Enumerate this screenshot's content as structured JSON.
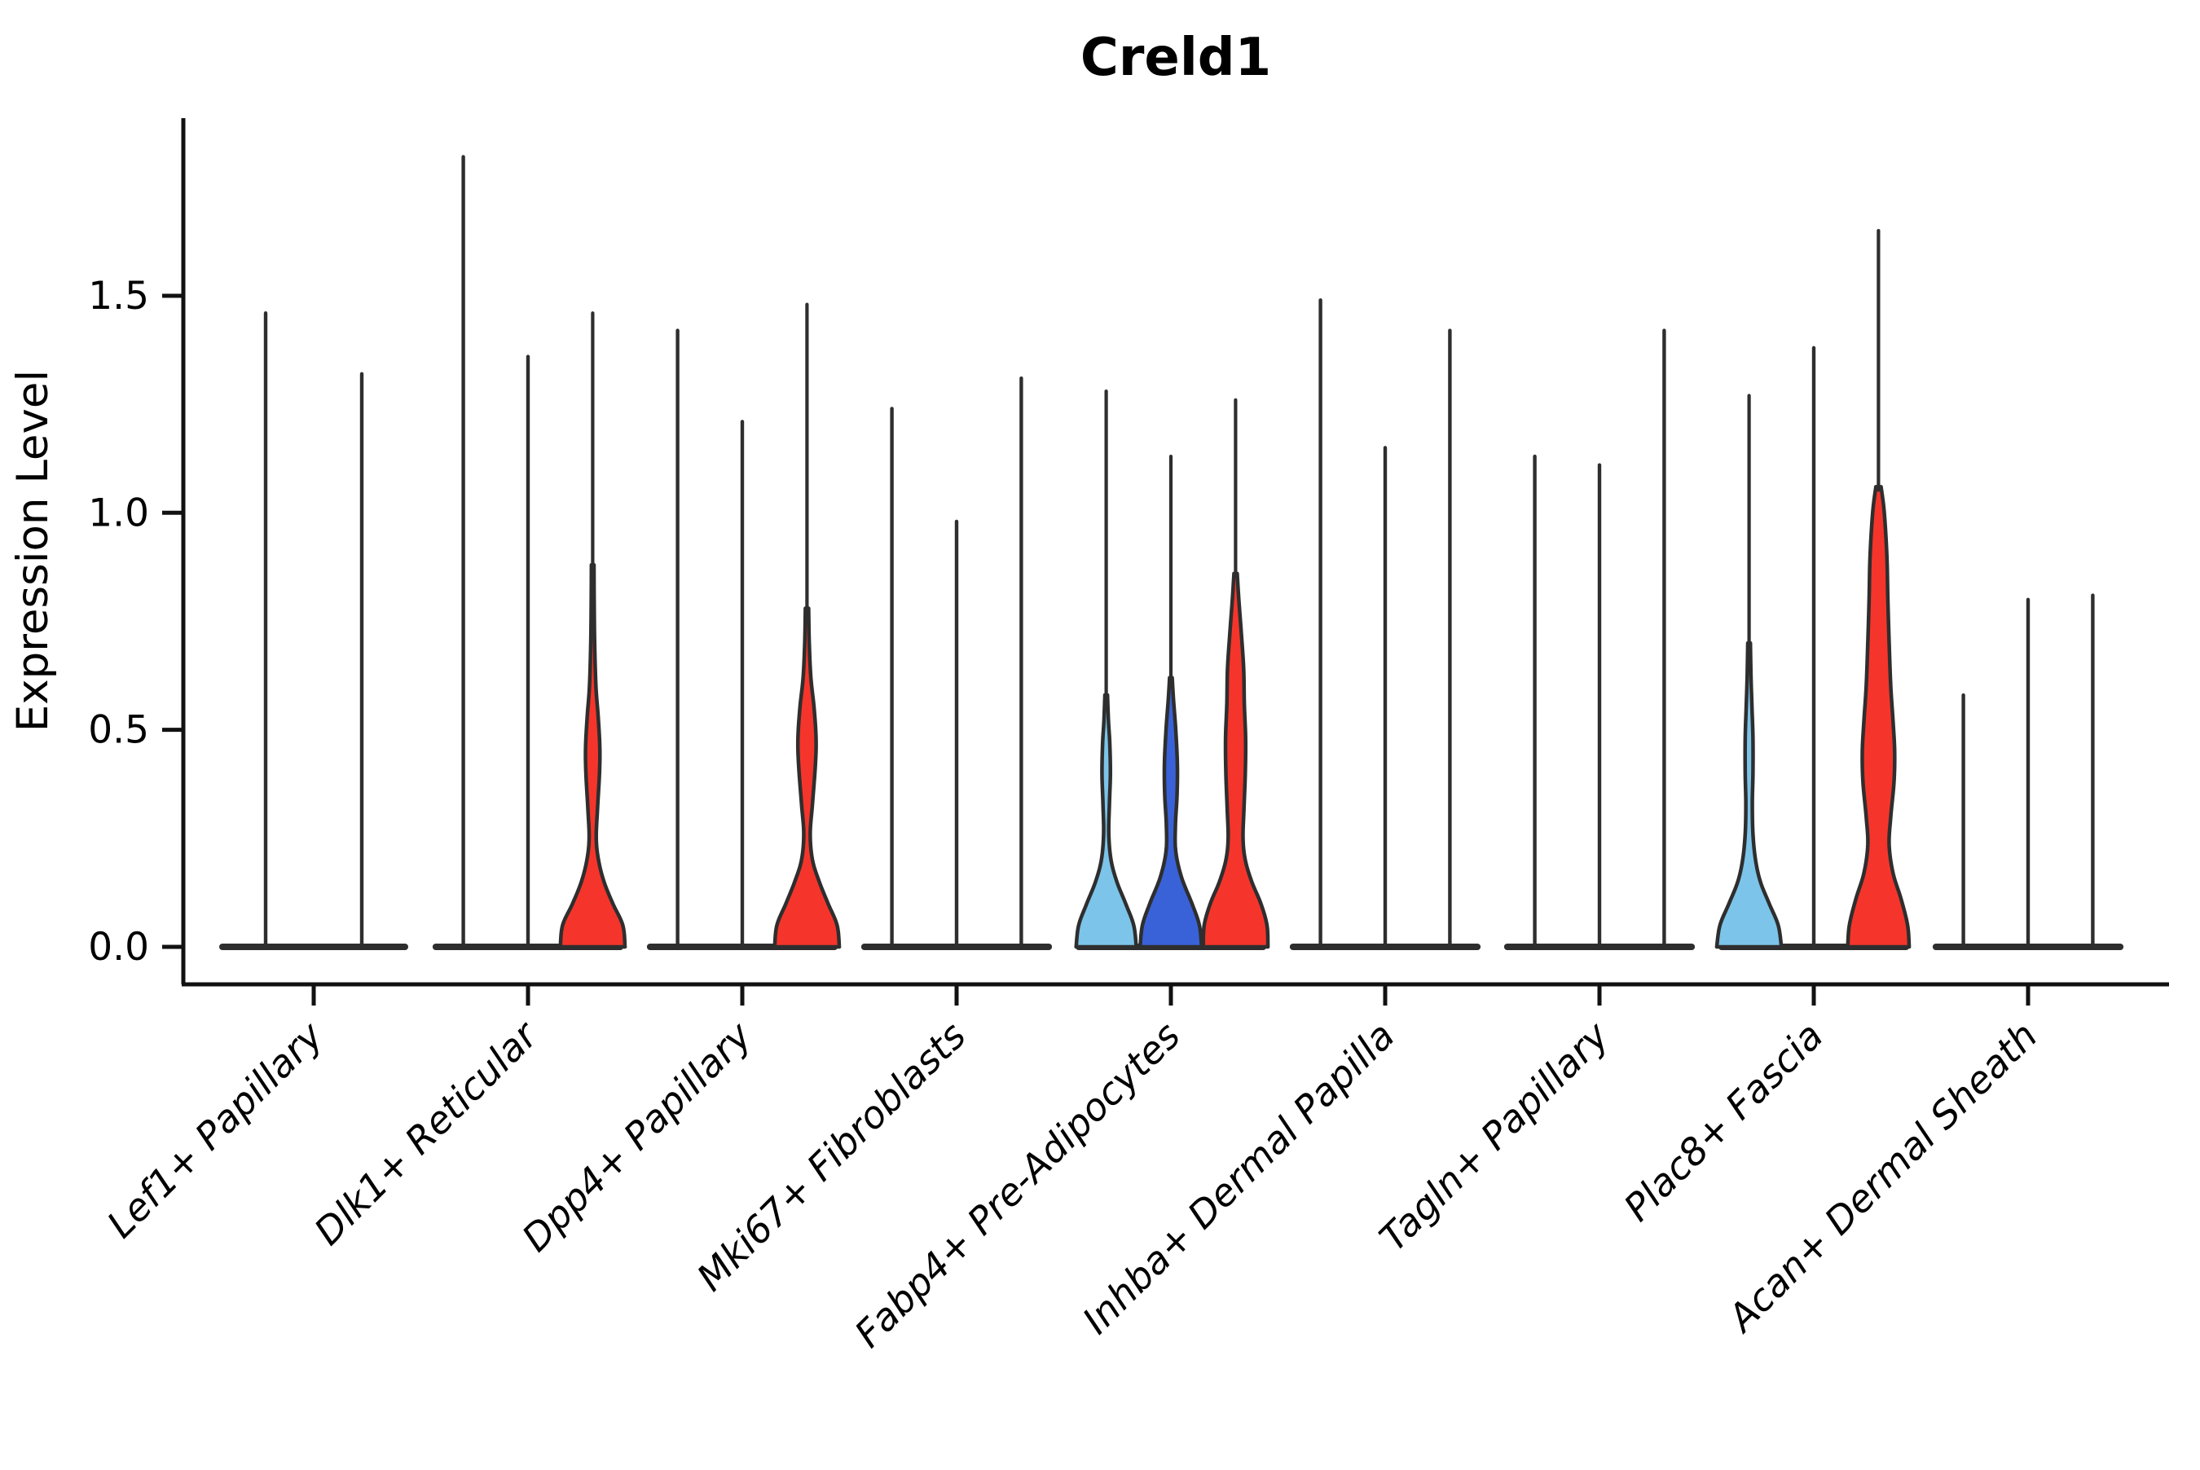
{
  "chart_data": {
    "type": "violin",
    "title": "Creld1",
    "xlabel": "",
    "ylabel": "Expression Level",
    "ylim": [
      -0.09,
      1.95
    ],
    "yticks": [
      0.0,
      0.5,
      1.0,
      1.5
    ],
    "ytick_labels": [
      "0.0",
      "0.5",
      "1.0",
      "1.5"
    ],
    "grid": false,
    "legend": "none",
    "palette": {
      "red": "#f5352b",
      "light_blue": "#7cc4e9",
      "dark_blue": "#3a62d8",
      "outline": "#2e2e2e",
      "spine": "#111111"
    },
    "categories": [
      "Lef1+ Papillary",
      "Dlk1+ Reticular",
      "Dpp4+ Papillary",
      "Mki67+ Fibroblasts",
      "Fabp4+ Pre-Adipocytes",
      "Inhba+ Dermal Papilla",
      "Tagln+ Papillary",
      "Plac8+ Fascia",
      "Acan+ Dermal Sheath"
    ],
    "groups": [
      {
        "category": "Lef1+ Papillary",
        "violins": [
          {
            "max": 1.46,
            "color": "black",
            "fill_top": 0,
            "profile": null
          },
          {
            "max": 1.32,
            "color": "black",
            "fill_top": 0,
            "profile": null
          }
        ]
      },
      {
        "category": "Dlk1+ Reticular",
        "violins": [
          {
            "max": 1.82,
            "color": "black",
            "fill_top": 0,
            "profile": null
          },
          {
            "max": 1.36,
            "color": "black",
            "fill_top": 0,
            "profile": null
          },
          {
            "max": 1.46,
            "color": "red",
            "fill_top": 0.88,
            "profile": [
              [
                0,
                1.0
              ],
              [
                0.05,
                0.93
              ],
              [
                0.1,
                0.62
              ],
              [
                0.15,
                0.35
              ],
              [
                0.2,
                0.18
              ],
              [
                0.25,
                0.11
              ],
              [
                0.32,
                0.15
              ],
              [
                0.4,
                0.21
              ],
              [
                0.46,
                0.22
              ],
              [
                0.53,
                0.17
              ],
              [
                0.6,
                0.1
              ],
              [
                0.7,
                0.06
              ],
              [
                0.8,
                0.045
              ],
              [
                0.88,
                0.04
              ]
            ]
          }
        ]
      },
      {
        "category": "Dpp4+ Papillary",
        "violins": [
          {
            "max": 1.42,
            "color": "black",
            "fill_top": 0,
            "profile": null
          },
          {
            "max": 1.21,
            "color": "black",
            "fill_top": 0,
            "profile": null
          },
          {
            "max": 1.48,
            "color": "red",
            "fill_top": 0.78,
            "profile": [
              [
                0,
                1.0
              ],
              [
                0.05,
                0.93
              ],
              [
                0.1,
                0.65
              ],
              [
                0.15,
                0.38
              ],
              [
                0.2,
                0.17
              ],
              [
                0.26,
                0.1
              ],
              [
                0.33,
                0.17
              ],
              [
                0.42,
                0.26
              ],
              [
                0.48,
                0.28
              ],
              [
                0.55,
                0.22
              ],
              [
                0.62,
                0.12
              ],
              [
                0.7,
                0.07
              ],
              [
                0.78,
                0.05
              ]
            ]
          }
        ]
      },
      {
        "category": "Mki67+ Fibroblasts",
        "violins": [
          {
            "max": 1.24,
            "color": "black",
            "fill_top": 0,
            "profile": null
          },
          {
            "max": 0.98,
            "color": "black",
            "fill_top": 0,
            "profile": null
          },
          {
            "max": 1.31,
            "color": "black",
            "fill_top": 0,
            "profile": null
          }
        ]
      },
      {
        "category": "Fabp4+ Pre-Adipocytes",
        "violins": [
          {
            "max": 1.28,
            "color": "light_blue",
            "fill_top": 0.58,
            "profile": [
              [
                0,
                0.93
              ],
              [
                0.05,
                0.85
              ],
              [
                0.1,
                0.6
              ],
              [
                0.15,
                0.33
              ],
              [
                0.2,
                0.15
              ],
              [
                0.26,
                0.08
              ],
              [
                0.33,
                0.1
              ],
              [
                0.4,
                0.13
              ],
              [
                0.47,
                0.11
              ],
              [
                0.52,
                0.07
              ],
              [
                0.58,
                0.04
              ]
            ]
          },
          {
            "max": 1.13,
            "color": "dark_blue",
            "fill_top": 0.62,
            "profile": [
              [
                0,
                0.95
              ],
              [
                0.05,
                0.88
              ],
              [
                0.1,
                0.65
              ],
              [
                0.16,
                0.33
              ],
              [
                0.22,
                0.15
              ],
              [
                0.28,
                0.14
              ],
              [
                0.35,
                0.19
              ],
              [
                0.42,
                0.2
              ],
              [
                0.5,
                0.15
              ],
              [
                0.57,
                0.08
              ],
              [
                0.62,
                0.04
              ]
            ]
          },
          {
            "max": 1.26,
            "color": "red",
            "fill_top": 0.86,
            "profile": [
              [
                0,
                1.0
              ],
              [
                0.05,
                0.97
              ],
              [
                0.1,
                0.78
              ],
              [
                0.15,
                0.5
              ],
              [
                0.2,
                0.3
              ],
              [
                0.25,
                0.23
              ],
              [
                0.32,
                0.26
              ],
              [
                0.4,
                0.3
              ],
              [
                0.48,
                0.31
              ],
              [
                0.56,
                0.27
              ],
              [
                0.64,
                0.25
              ],
              [
                0.72,
                0.18
              ],
              [
                0.8,
                0.1
              ],
              [
                0.86,
                0.05
              ]
            ]
          }
        ]
      },
      {
        "category": "Inhba+ Dermal Papilla",
        "violins": [
          {
            "max": 1.49,
            "color": "black",
            "fill_top": 0,
            "profile": null
          },
          {
            "max": 1.15,
            "color": "black",
            "fill_top": 0,
            "profile": null
          },
          {
            "max": 1.42,
            "color": "black",
            "fill_top": 0,
            "profile": null
          }
        ]
      },
      {
        "category": "Tagln+ Papillary",
        "violins": [
          {
            "max": 1.13,
            "color": "black",
            "fill_top": 0,
            "profile": null
          },
          {
            "max": 1.11,
            "color": "black",
            "fill_top": 0,
            "profile": null
          },
          {
            "max": 1.42,
            "color": "black",
            "fill_top": 0,
            "profile": null
          }
        ]
      },
      {
        "category": "Plac8+ Fascia",
        "violins": [
          {
            "max": 1.27,
            "color": "light_blue",
            "fill_top": 0.7,
            "profile": [
              [
                0,
                1.0
              ],
              [
                0.05,
                0.9
              ],
              [
                0.1,
                0.62
              ],
              [
                0.15,
                0.35
              ],
              [
                0.2,
                0.2
              ],
              [
                0.26,
                0.12
              ],
              [
                0.33,
                0.1
              ],
              [
                0.4,
                0.12
              ],
              [
                0.48,
                0.12
              ],
              [
                0.55,
                0.09
              ],
              [
                0.62,
                0.06
              ],
              [
                0.7,
                0.04
              ]
            ]
          },
          {
            "max": 1.38,
            "color": "black",
            "fill_top": 0,
            "profile": null
          },
          {
            "max": 1.65,
            "color": "red",
            "fill_top": 1.06,
            "profile": [
              [
                0,
                0.95
              ],
              [
                0.05,
                0.9
              ],
              [
                0.11,
                0.7
              ],
              [
                0.17,
                0.45
              ],
              [
                0.235,
                0.33
              ],
              [
                0.3,
                0.38
              ],
              [
                0.38,
                0.48
              ],
              [
                0.45,
                0.5
              ],
              [
                0.52,
                0.45
              ],
              [
                0.6,
                0.38
              ],
              [
                0.7,
                0.33
              ],
              [
                0.8,
                0.29
              ],
              [
                0.9,
                0.26
              ],
              [
                1.0,
                0.18
              ],
              [
                1.06,
                0.08
              ]
            ]
          }
        ]
      },
      {
        "category": "Acan+ Dermal Sheath",
        "violins": [
          {
            "max": 0.58,
            "color": "black",
            "fill_top": 0,
            "profile": null
          },
          {
            "max": 0.8,
            "color": "black",
            "fill_top": 0,
            "profile": null
          },
          {
            "max": 0.81,
            "color": "black",
            "fill_top": 0,
            "profile": null
          }
        ]
      }
    ]
  }
}
